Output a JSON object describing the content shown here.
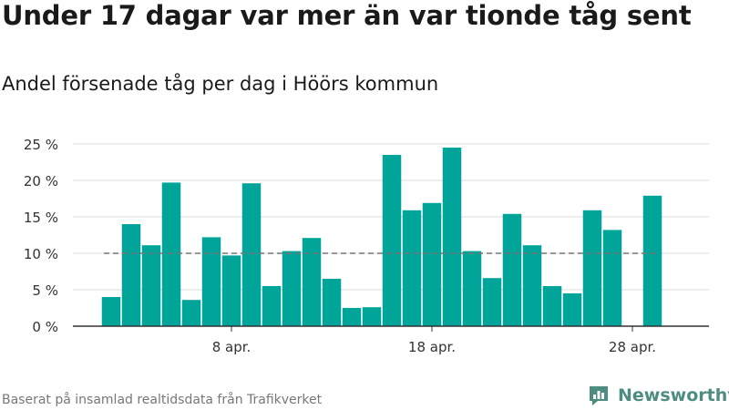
{
  "title": "Under 17 dagar var mer än var tionde tåg sent",
  "subtitle": "Andel försenade tåg per dag i Höörs kommun",
  "footer": "Baserat på insamlad realtidsdata från Trafikverket",
  "logo": {
    "text": "Newsworthy",
    "icon": "newsworthy-logo-icon",
    "color": "#4d8c80"
  },
  "colors": {
    "bar": "#00a499",
    "grid": "#dddddd",
    "reference": "#777777",
    "axis": "#333333"
  },
  "chart_data": {
    "type": "bar",
    "x": [
      "2024-04-02",
      "2024-04-03",
      "2024-04-04",
      "2024-04-05",
      "2024-04-06",
      "2024-04-07",
      "2024-04-08",
      "2024-04-09",
      "2024-04-10",
      "2024-04-11",
      "2024-04-12",
      "2024-04-13",
      "2024-04-14",
      "2024-04-15",
      "2024-04-16",
      "2024-04-17",
      "2024-04-18",
      "2024-04-19",
      "2024-04-20",
      "2024-04-21",
      "2024-04-22",
      "2024-04-23",
      "2024-04-24",
      "2024-04-25",
      "2024-04-26",
      "2024-04-27",
      "2024-04-28",
      "2024-04-29"
    ],
    "values": [
      4.0,
      14.0,
      11.1,
      19.7,
      3.6,
      12.2,
      9.7,
      19.6,
      5.5,
      10.3,
      12.1,
      6.5,
      2.5,
      2.6,
      23.5,
      15.9,
      16.9,
      24.5,
      10.3,
      6.6,
      15.4,
      11.1,
      5.5,
      4.5,
      15.9,
      13.2,
      null,
      17.9
    ],
    "ylim": [
      0,
      25
    ],
    "yticks": [
      0,
      5,
      10,
      15,
      20,
      25
    ],
    "ytick_labels": [
      "0 %",
      "5 %",
      "10 %",
      "15 %",
      "20 %",
      "25 %"
    ],
    "xticks": [
      "2024-04-08",
      "2024-04-18",
      "2024-04-28"
    ],
    "xtick_labels": [
      "8 apr.",
      "18 apr.",
      "28 apr."
    ],
    "reference_line": {
      "y": 10,
      "style": "dashed"
    },
    "grid": "horizontal",
    "xlabel": "",
    "ylabel": ""
  }
}
